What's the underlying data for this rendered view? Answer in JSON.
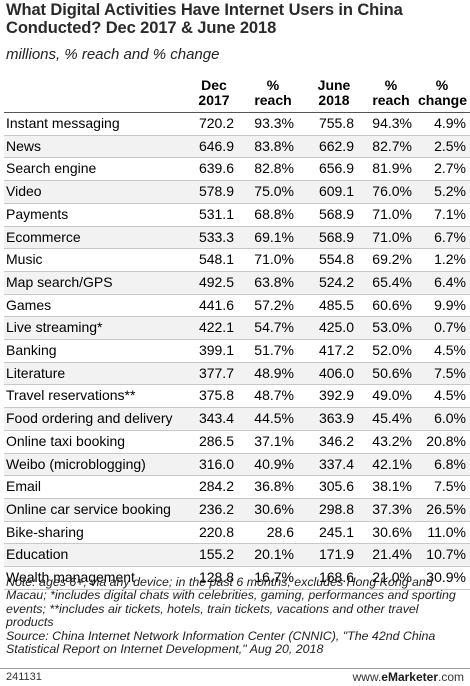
{
  "title": "What Digital Activities Have Internet Users in China Conducted? Dec 2017 & June 2018",
  "subtitle": "millions, % reach and % change",
  "chart_data": {
    "type": "table",
    "columns": [
      "",
      "Dec 2017",
      "% reach",
      "June 2018",
      "% reach",
      "% change"
    ],
    "rows": [
      [
        "Instant messaging",
        "720.2",
        "93.3%",
        "755.8",
        "94.3%",
        "4.9%"
      ],
      [
        "News",
        "646.9",
        "83.8%",
        "662.9",
        "82.7%",
        "2.5%"
      ],
      [
        "Search engine",
        "639.6",
        "82.8%",
        "656.9",
        "81.9%",
        "2.7%"
      ],
      [
        "Video",
        "578.9",
        "75.0%",
        "609.1",
        "76.0%",
        "5.2%"
      ],
      [
        "Payments",
        "531.1",
        "68.8%",
        "568.9",
        "71.0%",
        "7.1%"
      ],
      [
        "Ecommerce",
        "533.3",
        "69.1%",
        "568.9",
        "71.0%",
        "6.7%"
      ],
      [
        "Music",
        "548.1",
        "71.0%",
        "554.8",
        "69.2%",
        "1.2%"
      ],
      [
        "Map search/GPS",
        "492.5",
        "63.8%",
        "524.2",
        "65.4%",
        "6.4%"
      ],
      [
        "Games",
        "441.6",
        "57.2%",
        "485.5",
        "60.6%",
        "9.9%"
      ],
      [
        "Live streaming*",
        "422.1",
        "54.7%",
        "425.0",
        "53.0%",
        "0.7%"
      ],
      [
        "Banking",
        "399.1",
        "51.7%",
        "417.2",
        "52.0%",
        "4.5%"
      ],
      [
        "Literature",
        "377.7",
        "48.9%",
        "406.0",
        "50.6%",
        "7.5%"
      ],
      [
        "Travel reservations**",
        "375.8",
        "48.7%",
        "392.9",
        "49.0%",
        "4.5%"
      ],
      [
        "Food ordering and delivery",
        "343.4",
        "44.5%",
        "363.9",
        "45.4%",
        "6.0%"
      ],
      [
        "Online taxi booking",
        "286.5",
        "37.1%",
        "346.2",
        "43.2%",
        "20.8%"
      ],
      [
        "Weibo (microblogging)",
        "316.0",
        "40.9%",
        "337.4",
        "42.1%",
        "6.8%"
      ],
      [
        "Email",
        "284.2",
        "36.8%",
        "305.6",
        "38.1%",
        "7.5%"
      ],
      [
        "Online car service booking",
        "236.2",
        "30.6%",
        "298.8",
        "37.3%",
        "26.5%"
      ],
      [
        "Bike-sharing",
        "220.8",
        "28.6",
        "245.1",
        "30.6%",
        "11.0%"
      ],
      [
        "Education",
        "155.2",
        "20.1%",
        "171.9",
        "21.4%",
        "10.7%"
      ],
      [
        "Wealth management",
        "128.8",
        "16.7%",
        "168.6",
        "21.0%",
        "30.9%"
      ]
    ]
  },
  "notes": "Note: ages 6+; via any device; in the past 6 months; excludes Hong Kong and Macau; *includes digital chats with celebrities, gaming, performances and sporting events; **includes air tickets, hotels, train tickets, vacations and other travel products",
  "source": "Source: China Internet Network Information Center (CNNIC), \"The 42nd China Statistical Report on Internet Development,\" Aug 20, 2018",
  "footer": {
    "id": "241131",
    "brand_prefix": "www.",
    "brand_name": "eMarketer",
    "brand_suffix": ".com"
  }
}
